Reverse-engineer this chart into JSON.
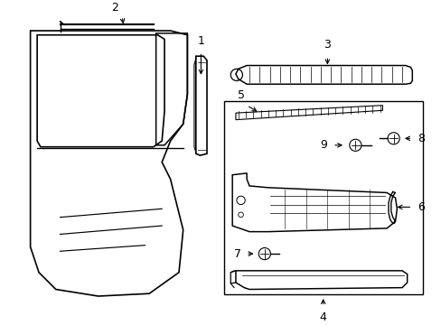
{
  "background_color": "#ffffff",
  "line_color": "#000000",
  "figure_width": 4.89,
  "figure_height": 3.6,
  "dpi": 100
}
